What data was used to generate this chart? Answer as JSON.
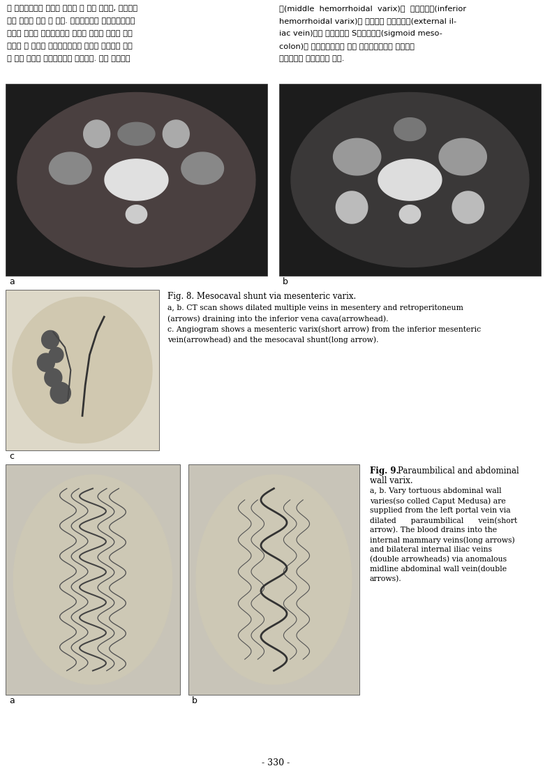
{
  "bg_color": "#f5f5f0",
  "page_number": "- 330 -",
  "korean_text_left": "파 좌신정맥으로 단락을 형성할 수 있고 기정맥, 반기정맥\n으로 혜류가 흐를 수 있다. 해부학적으로 하장간막정맥은\n후복강 내에서 좌성선정맥과 상당한 거리를 나란히 주행\n하므로 이 정맥과 측부순환경로를 형성할 가능성이 높고\n이 경우 혜류는 좌신정맥으로 연결된다. 또한 중치정맥",
  "korean_text_right": "류(middle hemorrhoidal varix)와 하치정맥류(inferior\nhemorrhoidal varix)를 경유하여 외장골정맥(external il-\niac vein)으로 연결되거나 S상결장간막(sigmoid meso-\ncolon)의 측부순환경로를 통해 후복강정맥류나 충추주위\n정맥충으로 연겴되기도 한다.",
  "fig8_title": "Fig. 8. Mesocaval shunt via mesenteric varix.",
  "fig8_caption": "a, b. CT scan shows dilated multiple veins in mesentery and retroperitoneum\n(arrows) draining into the inferior vena cava(arrowhead).\nc. Angiogram shows a mesenteric varix(short arrow) from the inferior mesenteric\nvein(arrowhead) and the mesocaval shunt(long arrow).",
  "fig9_title": "Fig. 9. Paraumbilical and abdominal\nwall varix.",
  "fig9_caption": "a, b. Vary tortuous abdominal wall\nvaries(so colled Caput Medusa) are\nsupplied from the left portal vein via\ndilated      paraumbilical      vein(short\narrowrow). The blood drains into the\ninternal mammary veins(long arrows)\nand bilateral internal iliac veins\n(double arrowheads) via anomalous\nmidline abdominal wall vein(double\narrows).",
  "label_a_top": "a",
  "label_b_top": "b",
  "label_c": "c",
  "label_a_bot": "a",
  "label_b_bot": "b",
  "image_bg": "#2a2a2a",
  "image_bg_light": "#c8c8c8"
}
